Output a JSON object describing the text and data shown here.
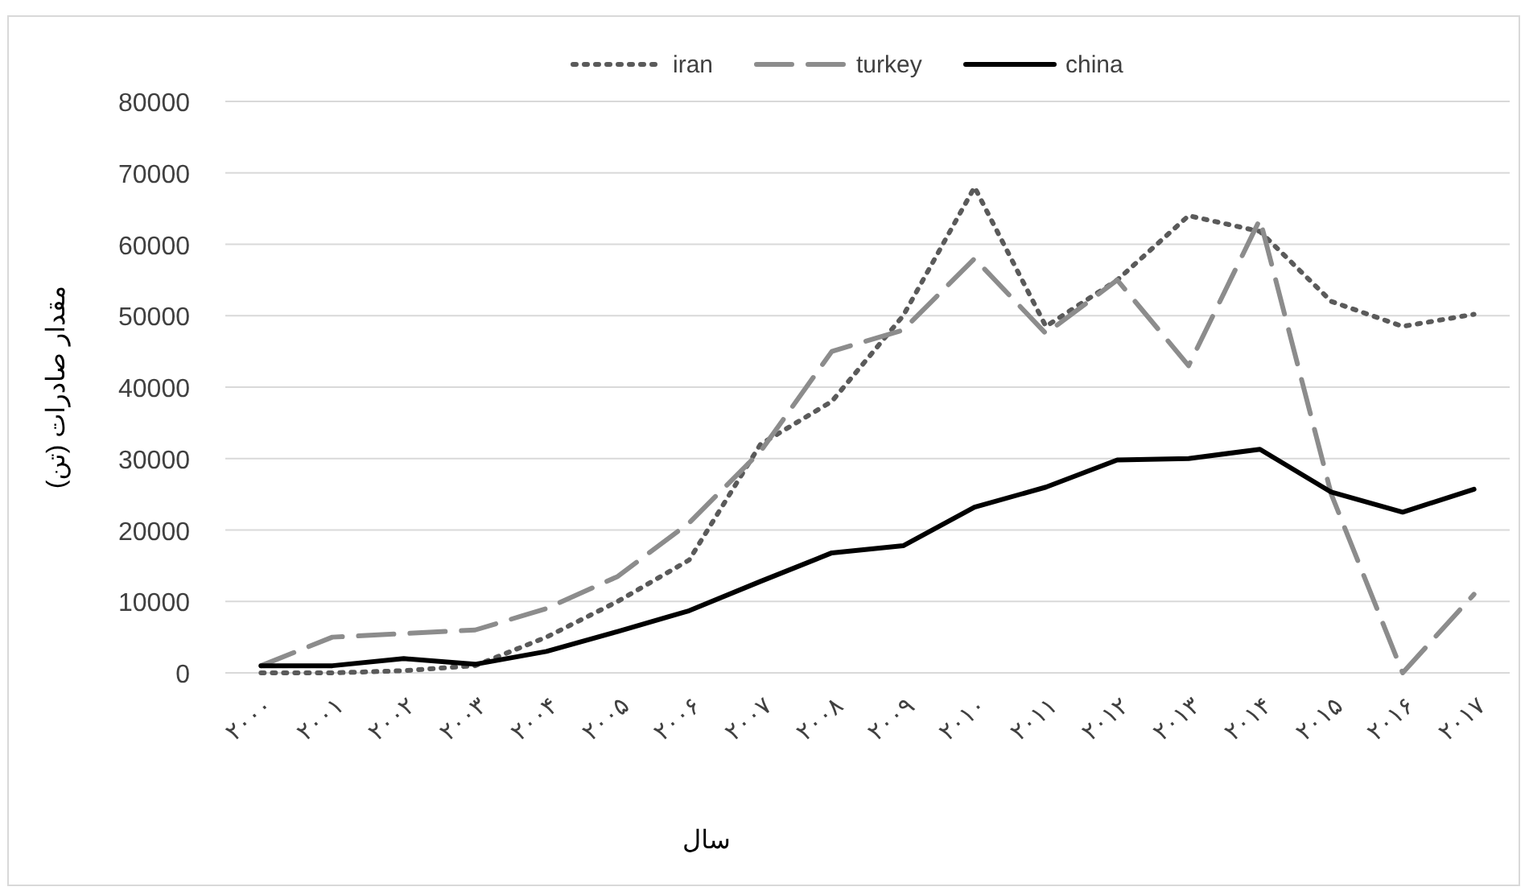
{
  "chart_data": {
    "type": "line",
    "categories": [
      "۲۰۰۰",
      "۲۰۰۱",
      "۲۰۰۲",
      "۲۰۰۳",
      "۲۰۰۴",
      "۲۰۰۵",
      "۲۰۰۶",
      "۲۰۰۷",
      "۲۰۰۸",
      "۲۰۰۹",
      "۲۰۱۰",
      "۲۰۱۱",
      "۲۰۱۲",
      "۲۰۱۳",
      "۲۰۱۴",
      "۲۰۱۵",
      "۲۰۱۶",
      "۲۰۱۷"
    ],
    "series": [
      {
        "name": "iran",
        "color": "#5a5a5a",
        "line_style": "dotted",
        "values": [
          0,
          0,
          300,
          1000,
          5000,
          10000,
          15800,
          32000,
          38000,
          50000,
          68000,
          48500,
          55000,
          64000,
          61800,
          52000,
          48500,
          50200
        ]
      },
      {
        "name": "turkey",
        "color": "#8c8c8c",
        "line_style": "dashed",
        "values": [
          1000,
          5000,
          5500,
          6000,
          9000,
          13500,
          21000,
          31000,
          45000,
          48000,
          58000,
          47500,
          55000,
          43000,
          63500,
          25000,
          0,
          11000
        ]
      },
      {
        "name": "china",
        "color": "#000000",
        "line_style": "solid",
        "values": [
          1000,
          1000,
          2000,
          1200,
          3000,
          5800,
          8700,
          12800,
          16800,
          17800,
          23200,
          26000,
          29800,
          30000,
          31300,
          25300,
          22500,
          25700
        ]
      }
    ],
    "ylim": [
      0,
      80000
    ],
    "yticks": [
      0,
      10000,
      20000,
      30000,
      40000,
      50000,
      60000,
      70000,
      80000
    ],
    "grid": "y",
    "legend": "top",
    "xlabel": "سال",
    "ylabel": "مقدار صادرات (تن)"
  }
}
